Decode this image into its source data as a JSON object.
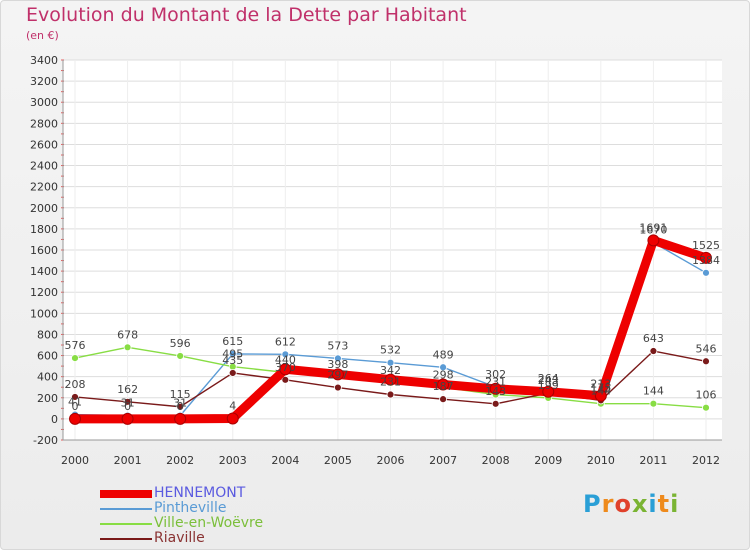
{
  "title": "Evolution du Montant de la Dette par Habitant",
  "unit": "(en €)",
  "logo": {
    "letters": [
      "P",
      "r",
      "o",
      "x",
      "i",
      "t",
      "i"
    ],
    "colors": [
      "#2a9fd6",
      "#ee8a1c",
      "#e0412b",
      "#7ab433",
      "#2a9fd6",
      "#ee8a1c",
      "#7ab433"
    ]
  },
  "chart_data": {
    "type": "line",
    "x": [
      "2000",
      "2001",
      "2002",
      "2003",
      "2004",
      "2005",
      "2006",
      "2007",
      "2008",
      "2009",
      "2010",
      "2011",
      "2012"
    ],
    "ylim": [
      -200,
      3400
    ],
    "yticks": [
      -200,
      0,
      200,
      400,
      600,
      800,
      1000,
      1200,
      1400,
      1600,
      1800,
      2000,
      2200,
      2400,
      2600,
      2800,
      3000,
      3200,
      3400
    ],
    "grid": true,
    "legend": "bottom-left",
    "series": [
      {
        "name": "HENNEMONT",
        "color": "#ee0000",
        "values": [
          0,
          0,
          0,
          4,
          470,
          422,
          372,
          326,
          285,
          257,
          219,
          1691,
          1525
        ],
        "labels": [
          "0",
          "0",
          "0",
          "4",
          "",
          "",
          "",
          "",
          "",
          "",
          "",
          "1691",
          "1525"
        ]
      },
      {
        "name": "Pintheville",
        "color": "#5a9bd5",
        "values": [
          41,
          31,
          31,
          615,
          612,
          573,
          532,
          489,
          302,
          264,
          213,
          1670,
          1384
        ],
        "labels": [
          "41",
          "31",
          "31",
          "615",
          "612",
          "573",
          "532",
          "489",
          "302",
          "264",
          "213",
          "1670",
          "1384"
        ]
      },
      {
        "name": "Ville-en-Woëvre",
        "color": "#88dd44",
        "values": [
          576,
          678,
          596,
          495,
          440,
          398,
          342,
          298,
          231,
          199,
          144,
          144,
          106
        ],
        "labels": [
          "576",
          "678",
          "596",
          "495",
          "440",
          "398",
          "342",
          "298",
          "231",
          "199",
          "144",
          "144",
          "106"
        ]
      },
      {
        "name": "Riaville",
        "color": "#7a1a1a",
        "values": [
          208,
          162,
          115,
          435,
          370,
          297,
          231,
          187,
          143,
          243,
          175,
          643,
          546
        ],
        "labels": [
          "208",
          "162",
          "115",
          "435",
          "370",
          "297",
          "231",
          "187",
          "143",
          "243",
          "175",
          "643",
          "546"
        ]
      }
    ]
  }
}
